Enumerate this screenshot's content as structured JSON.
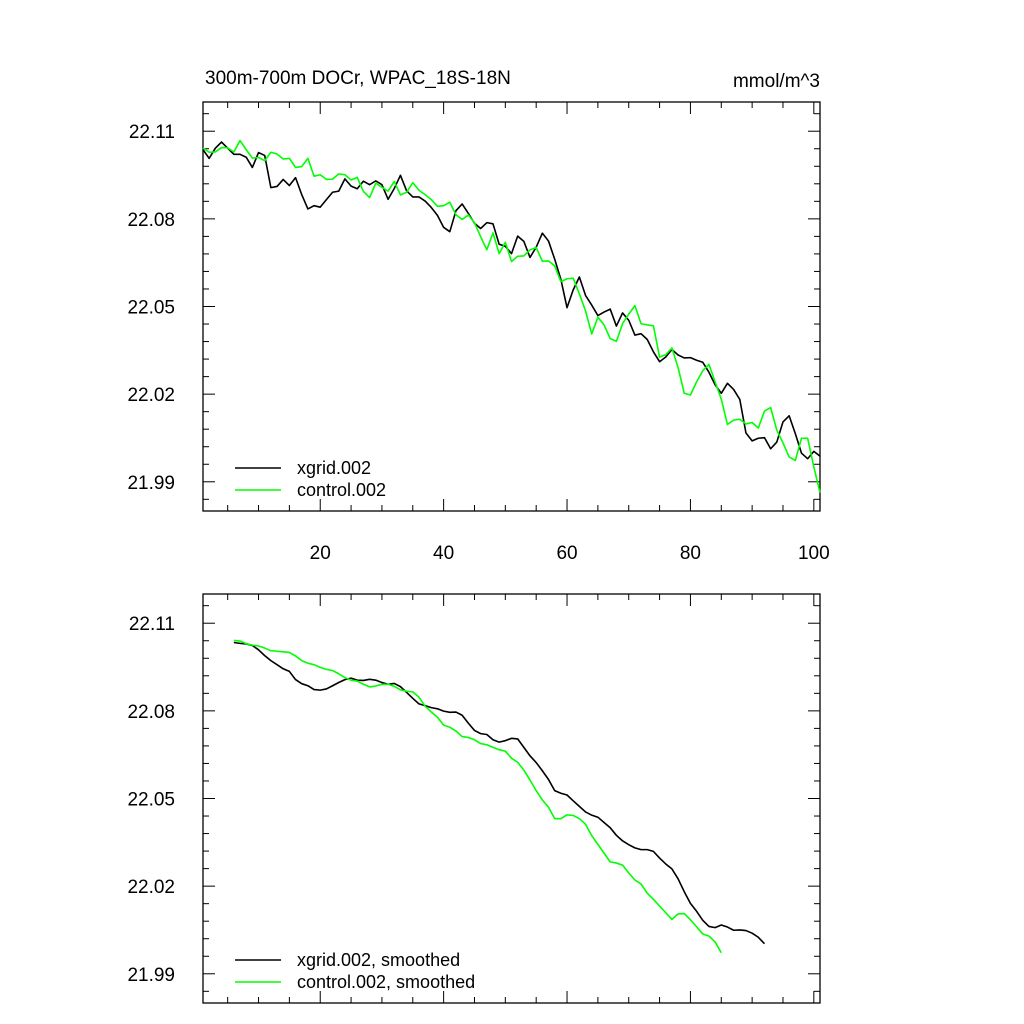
{
  "chart_data": [
    {
      "type": "line",
      "title": "300m-700m DOCr, WPAC_18S-18N",
      "units": "mmol/m^3",
      "xlabel": "",
      "ylabel": "",
      "xlim": [
        1,
        101
      ],
      "ylim": [
        21.98,
        22.12
      ],
      "x_ticks": [
        20,
        40,
        60,
        80,
        100
      ],
      "x_tick_labels": [
        "20",
        "40",
        "60",
        "80",
        "100"
      ],
      "y_ticks": [
        21.99,
        22.02,
        22.05,
        22.08,
        22.11
      ],
      "y_tick_labels": [
        "21.99",
        "22.02",
        "22.05",
        "22.08",
        "22.11"
      ],
      "grid": false,
      "legend_position": "bottom-left",
      "x_start": 1,
      "series": [
        {
          "name": "xgrid.002",
          "color": "#000000",
          "values": [
            22.1037,
            22.1007,
            22.1042,
            22.1063,
            22.1042,
            22.1021,
            22.1021,
            22.1011,
            22.0976,
            22.1027,
            22.1017,
            22.0907,
            22.0911,
            22.0935,
            22.0914,
            22.0941,
            22.0883,
            22.0834,
            22.0845,
            22.084,
            22.0866,
            22.0891,
            22.0895,
            22.0937,
            22.0912,
            22.0903,
            22.0929,
            22.0917,
            22.093,
            22.0917,
            22.0867,
            22.0904,
            22.0949,
            22.0896,
            22.0875,
            22.0875,
            22.0861,
            22.0839,
            22.0812,
            22.0771,
            22.0756,
            22.0828,
            22.0851,
            22.0819,
            22.0785,
            22.0767,
            22.0787,
            22.0783,
            22.0713,
            22.0706,
            22.0681,
            22.0741,
            22.0723,
            22.0668,
            22.0703,
            22.0751,
            22.0724,
            22.0662,
            22.0593,
            22.0496,
            22.0557,
            22.0601,
            22.0538,
            22.0505,
            22.0469,
            22.0481,
            22.0491,
            22.0433,
            22.0478,
            22.0453,
            22.0402,
            22.0407,
            22.0387,
            22.0345,
            22.0311,
            22.0327,
            22.0353,
            22.0334,
            22.0324,
            22.0325,
            22.0316,
            22.0309,
            22.0275,
            22.0232,
            22.0203,
            22.0237,
            22.0216,
            22.0182,
            22.0067,
            22.004,
            22.0049,
            22.0051,
            22.0013,
            22.0036,
            22.0105,
            22.0126,
            22.0065,
            21.9998,
            21.9979,
            22.0004,
            21.9988
          ]
        },
        {
          "name": "control.002",
          "color": "#00ff00",
          "values": [
            22.1043,
            22.1028,
            22.1029,
            22.1044,
            22.1043,
            22.1029,
            22.1068,
            22.1037,
            22.1008,
            22.101,
            22.0999,
            22.1028,
            22.1022,
            22.1005,
            22.1007,
            22.0976,
            22.0979,
            22.1007,
            22.0946,
            22.0951,
            22.0935,
            22.0936,
            22.0954,
            22.0951,
            22.0933,
            22.0942,
            22.0894,
            22.0873,
            22.0922,
            22.0908,
            22.0895,
            22.0928,
            22.0882,
            22.0891,
            22.0924,
            22.0898,
            22.0883,
            22.0866,
            22.0843,
            22.0845,
            22.0857,
            22.0814,
            22.0798,
            22.0813,
            22.0787,
            22.0739,
            22.0694,
            22.0752,
            22.0681,
            22.072,
            22.0654,
            22.0672,
            22.0673,
            22.0694,
            22.0702,
            22.0655,
            22.0656,
            22.0639,
            22.0585,
            22.0595,
            22.0597,
            22.0543,
            22.0485,
            22.0406,
            22.0463,
            22.0437,
            22.039,
            22.0381,
            22.0441,
            22.0474,
            22.0503,
            22.0441,
            22.0437,
            22.0434,
            22.0327,
            22.0335,
            22.0358,
            22.0291,
            22.0203,
            22.0197,
            22.0242,
            22.028,
            22.0302,
            22.0242,
            22.0183,
            22.0096,
            22.0111,
            22.0114,
            22.0098,
            22.0103,
            22.0084,
            22.0142,
            22.0154,
            22.0077,
            22.0033,
            21.9985,
            21.9973,
            22.0049,
            22.0049,
            21.9951,
            21.9863
          ]
        }
      ]
    },
    {
      "type": "line",
      "title": "",
      "xlabel": "",
      "ylabel": "",
      "xlim": [
        1,
        101
      ],
      "ylim": [
        21.98,
        22.12
      ],
      "x_ticks": [
        20,
        40,
        60,
        80,
        100
      ],
      "x_tick_labels": [],
      "y_ticks": [
        21.99,
        22.02,
        22.05,
        22.08,
        22.11
      ],
      "y_tick_labels": [
        "21.99",
        "22.02",
        "22.05",
        "22.08",
        "22.11"
      ],
      "grid": false,
      "legend_position": "bottom-left",
      "x_start": 6,
      "series": [
        {
          "name": "xgrid.002, smoothed",
          "color": "#000000",
          "values": [
            22.1034,
            22.1031,
            22.1029,
            22.1024,
            22.1009,
            22.0989,
            22.0972,
            22.0958,
            22.0944,
            22.0935,
            22.0907,
            22.0893,
            22.0886,
            22.0873,
            22.0871,
            22.0875,
            22.0886,
            22.0897,
            22.0907,
            22.0912,
            22.0905,
            22.0904,
            22.0908,
            22.0905,
            22.0897,
            22.0891,
            22.0894,
            22.0883,
            22.0863,
            22.0843,
            22.0824,
            22.0818,
            22.0811,
            22.0807,
            22.0799,
            22.0795,
            22.0796,
            22.0785,
            22.0758,
            22.0733,
            22.0722,
            22.0719,
            22.0701,
            22.0693,
            22.0698,
            22.0706,
            22.0704,
            22.0675,
            22.0646,
            22.0623,
            22.0595,
            22.0565,
            22.0527,
            22.0518,
            22.0512,
            22.0492,
            22.0473,
            22.0454,
            22.0443,
            22.0436,
            22.0418,
            22.04,
            22.0374,
            22.0355,
            22.0342,
            22.0331,
            22.0325,
            22.0325,
            22.0319,
            22.0296,
            22.0276,
            22.0259,
            22.0225,
            22.0181,
            22.0141,
            22.0114,
            22.0083,
            22.0062,
            22.0058,
            22.0067,
            22.006,
            22.0049,
            22.005,
            22.0048,
            22.0039,
            22.0025,
            22.0003
          ]
        },
        {
          "name": "control.002, smoothed",
          "color": "#00ff00",
          "values": [
            22.1041,
            22.1039,
            22.103,
            22.1025,
            22.1022,
            22.1015,
            22.1006,
            22.1004,
            22.1002,
            22.1,
            22.0988,
            22.0972,
            22.0963,
            22.0958,
            22.0949,
            22.0942,
            22.0938,
            22.0927,
            22.0914,
            22.0905,
            22.0902,
            22.0891,
            22.0882,
            22.0885,
            22.0891,
            22.0891,
            22.0884,
            22.0872,
            22.0867,
            22.0865,
            22.0847,
            22.0816,
            22.0796,
            22.0778,
            22.0751,
            22.0744,
            22.0731,
            22.0712,
            22.0709,
            22.0701,
            22.0688,
            22.0684,
            22.0675,
            22.0667,
            22.0662,
            22.0638,
            22.0624,
            22.0597,
            22.0563,
            22.0527,
            22.0495,
            22.047,
            22.0431,
            22.0431,
            22.0444,
            22.0442,
            22.0431,
            22.0412,
            22.0373,
            22.0343,
            22.0313,
            22.0283,
            22.0279,
            22.0272,
            22.0245,
            22.0221,
            22.0207,
            22.0176,
            22.0155,
            22.0132,
            22.0109,
            22.0086,
            22.0105,
            22.0106,
            22.0085,
            22.0061,
            22.0036,
            22.0029,
            22.0009,
            21.9972
          ]
        }
      ]
    }
  ]
}
